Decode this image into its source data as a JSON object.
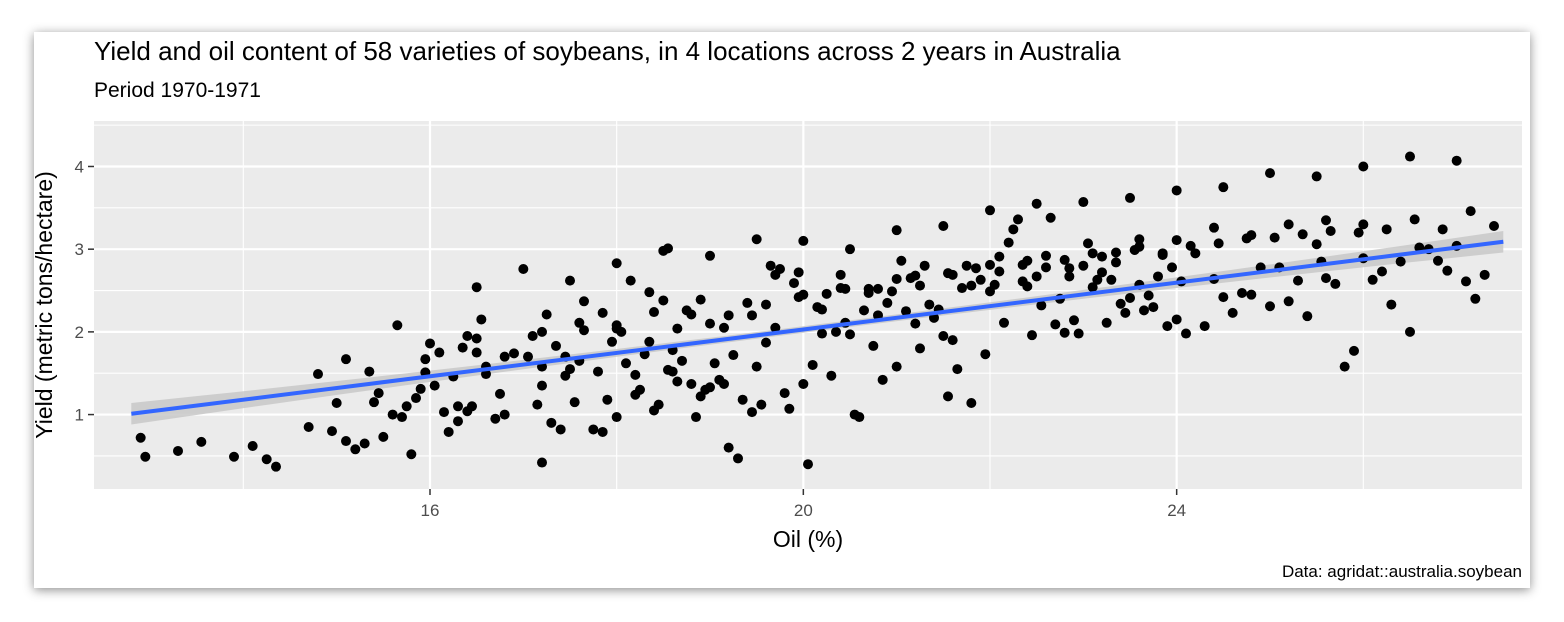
{
  "chart_data": {
    "type": "scatter",
    "title": "Yield and oil content of 58 varieties of soybeans, in 4 locations across 2 years in Australia",
    "subtitle": "Period 1970-1971",
    "caption": "Data: agridat::australia.soybean",
    "xlabel": "Oil (%)",
    "ylabel": "Yield (metric tons/hectare)",
    "xlim": [
      12.4,
      27.7
    ],
    "ylim": [
      0.1,
      4.55
    ],
    "xticks": [
      16,
      20,
      24
    ],
    "xtick_labels": [
      "16",
      "20",
      "24"
    ],
    "yticks": [
      1,
      2,
      3,
      4
    ],
    "ytick_labels": [
      "1",
      "2",
      "3",
      "4"
    ],
    "grid": true,
    "legend": "none",
    "colors": {
      "panel": "#EBEBEB",
      "grid": "#FFFFFF",
      "points": "#000000",
      "fit_line": "#3366FF",
      "ribbon": "#C8C8C8"
    },
    "trend_line": {
      "method": "lm",
      "x": [
        12.8,
        27.5
      ],
      "y": [
        1.01,
        3.09
      ],
      "ci_halfwidth_ends": 0.13,
      "ci_halfwidth_mid": 0.04
    },
    "points": [
      [
        12.9,
        0.72
      ],
      [
        12.95,
        0.49
      ],
      [
        13.3,
        0.56
      ],
      [
        13.55,
        0.67
      ],
      [
        13.9,
        0.49
      ],
      [
        14.1,
        0.62
      ],
      [
        14.25,
        0.46
      ],
      [
        14.35,
        0.37
      ],
      [
        14.7,
        0.85
      ],
      [
        14.8,
        1.49
      ],
      [
        14.95,
        0.8
      ],
      [
        15.1,
        0.68
      ],
      [
        15.1,
        1.67
      ],
      [
        15.3,
        0.65
      ],
      [
        15.35,
        1.52
      ],
      [
        15.4,
        1.15
      ],
      [
        15.5,
        0.73
      ],
      [
        15.6,
        1.0
      ],
      [
        15.65,
        2.08
      ],
      [
        15.7,
        0.97
      ],
      [
        15.75,
        1.1
      ],
      [
        15.8,
        0.52
      ],
      [
        15.85,
        1.2
      ],
      [
        15.95,
        1.51
      ],
      [
        15.95,
        1.67
      ],
      [
        16.05,
        1.35
      ],
      [
        16.1,
        1.75
      ],
      [
        16.2,
        0.79
      ],
      [
        16.25,
        1.46
      ],
      [
        16.3,
        0.92
      ],
      [
        16.3,
        1.1
      ],
      [
        16.35,
        1.81
      ],
      [
        16.4,
        1.04
      ],
      [
        16.45,
        1.1
      ],
      [
        16.5,
        1.92
      ],
      [
        16.5,
        1.75
      ],
      [
        16.55,
        2.15
      ],
      [
        16.6,
        1.58
      ],
      [
        16.7,
        0.95
      ],
      [
        16.75,
        1.25
      ],
      [
        16.8,
        1.0
      ],
      [
        17.1,
        1.95
      ],
      [
        17.15,
        1.12
      ],
      [
        17.2,
        1.35
      ],
      [
        17.2,
        0.42
      ],
      [
        17.25,
        2.21
      ],
      [
        17.3,
        0.9
      ],
      [
        17.35,
        1.83
      ],
      [
        17.4,
        0.82
      ],
      [
        17.45,
        1.7
      ],
      [
        17.5,
        1.55
      ],
      [
        17.55,
        1.15
      ],
      [
        17.6,
        1.65
      ],
      [
        17.65,
        2.02
      ],
      [
        17.75,
        0.82
      ],
      [
        17.8,
        1.52
      ],
      [
        17.85,
        0.79
      ],
      [
        17.9,
        1.18
      ],
      [
        17.95,
        1.88
      ],
      [
        18.0,
        2.04
      ],
      [
        18.0,
        0.97
      ],
      [
        18.1,
        1.62
      ],
      [
        18.15,
        2.62
      ],
      [
        18.2,
        1.24
      ],
      [
        18.2,
        1.48
      ],
      [
        18.25,
        1.3
      ],
      [
        18.3,
        1.73
      ],
      [
        18.35,
        1.88
      ],
      [
        18.4,
        1.05
      ],
      [
        18.45,
        1.12
      ],
      [
        18.5,
        2.38
      ],
      [
        18.55,
        1.54
      ],
      [
        18.55,
        3.01
      ],
      [
        18.6,
        1.52
      ],
      [
        18.6,
        1.78
      ],
      [
        18.65,
        1.4
      ],
      [
        18.7,
        1.65
      ],
      [
        18.75,
        2.26
      ],
      [
        18.8,
        1.37
      ],
      [
        18.85,
        0.97
      ],
      [
        18.9,
        1.22
      ],
      [
        18.95,
        1.3
      ],
      [
        19.0,
        1.33
      ],
      [
        19.0,
        2.1
      ],
      [
        19.05,
        1.62
      ],
      [
        19.1,
        1.42
      ],
      [
        19.15,
        1.37
      ],
      [
        19.2,
        0.6
      ],
      [
        19.25,
        1.72
      ],
      [
        19.3,
        0.47
      ],
      [
        19.35,
        1.18
      ],
      [
        19.4,
        2.35
      ],
      [
        19.45,
        1.03
      ],
      [
        19.5,
        1.58
      ],
      [
        19.55,
        1.12
      ],
      [
        19.6,
        1.87
      ],
      [
        19.65,
        2.8
      ],
      [
        19.7,
        2.69
      ],
      [
        19.75,
        2.76
      ],
      [
        19.8,
        1.26
      ],
      [
        19.85,
        1.07
      ],
      [
        19.9,
        2.59
      ],
      [
        19.95,
        2.72
      ],
      [
        20.0,
        1.37
      ],
      [
        20.05,
        0.4
      ],
      [
        20.1,
        1.6
      ],
      [
        20.15,
        2.3
      ],
      [
        20.2,
        1.98
      ],
      [
        20.25,
        2.46
      ],
      [
        20.3,
        1.47
      ],
      [
        20.35,
        2.0
      ],
      [
        20.4,
        2.69
      ],
      [
        20.45,
        2.11
      ],
      [
        20.5,
        1.97
      ],
      [
        20.55,
        1.0
      ],
      [
        20.6,
        0.97
      ],
      [
        20.65,
        2.26
      ],
      [
        20.7,
        2.52
      ],
      [
        20.75,
        1.83
      ],
      [
        20.8,
        2.2
      ],
      [
        20.85,
        1.42
      ],
      [
        20.9,
        2.35
      ],
      [
        20.95,
        2.49
      ],
      [
        21.0,
        1.58
      ],
      [
        21.05,
        2.86
      ],
      [
        21.1,
        2.25
      ],
      [
        21.15,
        2.65
      ],
      [
        21.2,
        2.1
      ],
      [
        21.25,
        1.8
      ],
      [
        21.3,
        2.8
      ],
      [
        21.35,
        2.33
      ],
      [
        21.4,
        2.17
      ],
      [
        21.45,
        2.27
      ],
      [
        21.5,
        1.95
      ],
      [
        21.55,
        1.22
      ],
      [
        21.6,
        1.9
      ],
      [
        21.65,
        1.55
      ],
      [
        21.7,
        2.53
      ],
      [
        21.75,
        2.8
      ],
      [
        21.8,
        1.14
      ],
      [
        21.85,
        2.77
      ],
      [
        21.9,
        2.63
      ],
      [
        21.95,
        1.73
      ],
      [
        22.0,
        2.49
      ],
      [
        22.05,
        2.57
      ],
      [
        22.1,
        2.91
      ],
      [
        22.15,
        2.11
      ],
      [
        22.2,
        3.08
      ],
      [
        22.25,
        3.24
      ],
      [
        22.3,
        3.36
      ],
      [
        22.35,
        2.81
      ],
      [
        22.4,
        2.55
      ],
      [
        22.45,
        1.96
      ],
      [
        22.5,
        2.67
      ],
      [
        22.55,
        2.32
      ],
      [
        22.6,
        2.92
      ],
      [
        22.65,
        3.38
      ],
      [
        22.7,
        2.09
      ],
      [
        22.75,
        2.4
      ],
      [
        22.8,
        1.99
      ],
      [
        22.85,
        2.67
      ],
      [
        22.9,
        2.14
      ],
      [
        22.95,
        1.98
      ],
      [
        23.0,
        2.8
      ],
      [
        23.05,
        3.07
      ],
      [
        23.1,
        2.54
      ],
      [
        23.15,
        2.63
      ],
      [
        23.2,
        2.72
      ],
      [
        23.25,
        2.11
      ],
      [
        23.3,
        2.63
      ],
      [
        23.35,
        2.84
      ],
      [
        23.4,
        2.34
      ],
      [
        23.45,
        2.23
      ],
      [
        23.5,
        2.41
      ],
      [
        23.55,
        2.99
      ],
      [
        23.6,
        2.57
      ],
      [
        23.65,
        2.26
      ],
      [
        23.7,
        2.44
      ],
      [
        23.75,
        2.3
      ],
      [
        23.8,
        2.67
      ],
      [
        23.85,
        2.95
      ],
      [
        23.9,
        2.07
      ],
      [
        23.95,
        2.78
      ],
      [
        24.0,
        2.15
      ],
      [
        24.05,
        2.61
      ],
      [
        24.1,
        1.98
      ],
      [
        24.2,
        2.95
      ],
      [
        24.3,
        2.07
      ],
      [
        24.4,
        2.64
      ],
      [
        24.5,
        2.42
      ],
      [
        24.6,
        2.23
      ],
      [
        24.7,
        2.47
      ],
      [
        24.8,
        2.45
      ],
      [
        24.9,
        2.78
      ],
      [
        25.0,
        2.31
      ],
      [
        25.1,
        2.78
      ],
      [
        25.2,
        2.37
      ],
      [
        25.3,
        2.62
      ],
      [
        25.4,
        2.19
      ],
      [
        25.5,
        3.06
      ],
      [
        25.55,
        2.85
      ],
      [
        25.6,
        2.65
      ],
      [
        25.7,
        2.58
      ],
      [
        25.8,
        1.58
      ],
      [
        25.9,
        1.77
      ],
      [
        26.0,
        2.89
      ],
      [
        26.1,
        2.63
      ],
      [
        26.2,
        2.73
      ],
      [
        26.3,
        2.33
      ],
      [
        26.4,
        2.85
      ],
      [
        26.5,
        2.0
      ],
      [
        26.6,
        3.02
      ],
      [
        26.7,
        3.0
      ],
      [
        26.8,
        2.86
      ],
      [
        26.9,
        2.74
      ],
      [
        27.0,
        3.04
      ],
      [
        27.1,
        2.61
      ],
      [
        27.2,
        2.4
      ],
      [
        27.3,
        2.69
      ],
      [
        27.4,
        3.28
      ],
      [
        15.0,
        1.14
      ],
      [
        15.2,
        0.58
      ],
      [
        15.45,
        1.26
      ],
      [
        15.9,
        1.31
      ],
      [
        16.15,
        1.03
      ],
      [
        16.6,
        1.49
      ],
      [
        16.9,
        1.74
      ],
      [
        17.05,
        1.7
      ],
      [
        17.2,
        1.58
      ],
      [
        17.45,
        1.47
      ],
      [
        17.65,
        2.37
      ],
      [
        17.85,
        2.23
      ],
      [
        18.05,
        2.0
      ],
      [
        18.35,
        2.48
      ],
      [
        18.65,
        2.04
      ],
      [
        18.9,
        2.39
      ],
      [
        19.15,
        2.05
      ],
      [
        19.45,
        2.2
      ],
      [
        19.7,
        2.05
      ],
      [
        19.95,
        2.42
      ],
      [
        20.2,
        2.27
      ],
      [
        20.45,
        2.52
      ],
      [
        20.7,
        2.47
      ],
      [
        21.0,
        2.64
      ],
      [
        21.25,
        2.56
      ],
      [
        21.55,
        2.71
      ],
      [
        21.8,
        2.56
      ],
      [
        22.1,
        2.73
      ],
      [
        22.35,
        2.61
      ],
      [
        22.6,
        2.78
      ],
      [
        22.85,
        2.77
      ],
      [
        23.1,
        2.95
      ],
      [
        23.35,
        2.96
      ],
      [
        23.6,
        3.03
      ],
      [
        23.85,
        2.93
      ],
      [
        24.15,
        3.04
      ],
      [
        24.45,
        3.07
      ],
      [
        24.75,
        3.13
      ],
      [
        25.05,
        3.14
      ],
      [
        25.35,
        3.18
      ],
      [
        25.65,
        3.22
      ],
      [
        25.95,
        3.2
      ],
      [
        26.25,
        3.24
      ],
      [
        26.55,
        3.36
      ],
      [
        26.85,
        3.24
      ],
      [
        27.15,
        3.46
      ],
      [
        16.0,
        1.86
      ],
      [
        16.4,
        1.95
      ],
      [
        16.8,
        1.7
      ],
      [
        17.2,
        2.0
      ],
      [
        17.6,
        2.11
      ],
      [
        18.0,
        2.08
      ],
      [
        18.4,
        2.24
      ],
      [
        18.8,
        2.21
      ],
      [
        19.2,
        2.2
      ],
      [
        19.6,
        2.33
      ],
      [
        20.0,
        2.45
      ],
      [
        20.4,
        2.53
      ],
      [
        20.8,
        2.52
      ],
      [
        21.2,
        2.68
      ],
      [
        21.6,
        2.69
      ],
      [
        22.0,
        2.81
      ],
      [
        22.4,
        2.86
      ],
      [
        22.8,
        2.87
      ],
      [
        23.2,
        2.91
      ],
      [
        23.6,
        3.12
      ],
      [
        24.0,
        3.11
      ],
      [
        24.4,
        3.26
      ],
      [
        24.8,
        3.17
      ],
      [
        25.2,
        3.3
      ],
      [
        25.6,
        3.35
      ],
      [
        26.0,
        3.3
      ],
      [
        16.5,
        2.54
      ],
      [
        17.0,
        2.76
      ],
      [
        17.5,
        2.62
      ],
      [
        18.0,
        2.83
      ],
      [
        18.5,
        2.98
      ],
      [
        19.0,
        2.92
      ],
      [
        19.5,
        3.12
      ],
      [
        20.0,
        3.1
      ],
      [
        20.5,
        3.0
      ],
      [
        21.0,
        3.23
      ],
      [
        21.5,
        3.28
      ],
      [
        22.0,
        3.47
      ],
      [
        22.5,
        3.55
      ],
      [
        23.0,
        3.57
      ],
      [
        23.5,
        3.62
      ],
      [
        24.0,
        3.71
      ],
      [
        24.5,
        3.75
      ],
      [
        25.0,
        3.92
      ],
      [
        25.5,
        3.88
      ],
      [
        26.0,
        4.0
      ],
      [
        26.5,
        4.12
      ],
      [
        27.0,
        4.07
      ]
    ]
  }
}
